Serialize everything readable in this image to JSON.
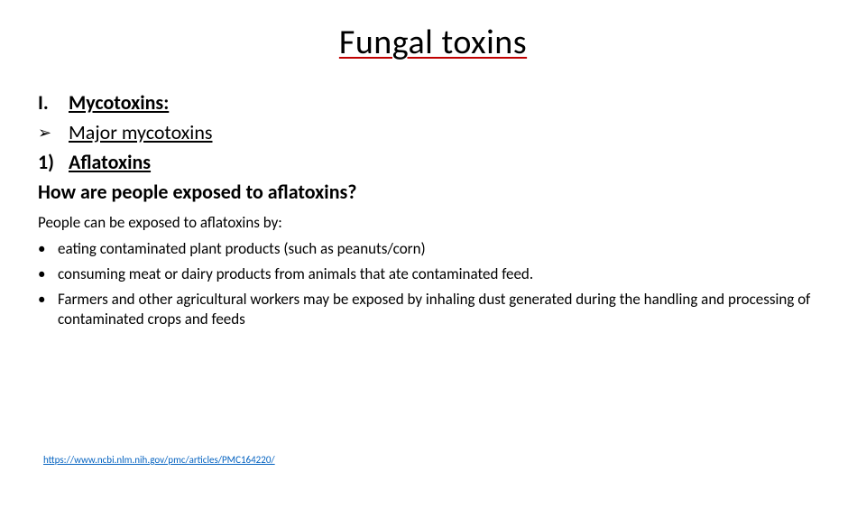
{
  "title": "Fungal toxins",
  "section": {
    "roman_marker": "I.",
    "roman_label": "Mycotoxins:",
    "arrow_marker": "➢",
    "major_label": "Major mycotoxins",
    "num_marker": "1)",
    "num_label": "Aflatoxins",
    "question": "How are people exposed to aflatoxins?",
    "intro": "People can be exposed to aflatoxins by:",
    "bullets": {
      "b1": "eating contaminated plant products (such as peanuts/corn)",
      "b2": "consuming meat or dairy products from animals that ate contaminated feed.",
      "b3": "Farmers and other agricultural workers may be exposed by inhaling dust generated during the handling and processing of contaminated crops and feeds"
    }
  },
  "reference": {
    "url": "https://www.ncbi.nlm.nih.gov/pmc/articles/PMC164220/"
  },
  "colors": {
    "title_underline": "#c00000",
    "link": "#0563c1",
    "text": "#000000",
    "background": "#ffffff"
  },
  "fontsizes": {
    "title": 38,
    "body": 22,
    "small": 17,
    "ref": 11
  }
}
